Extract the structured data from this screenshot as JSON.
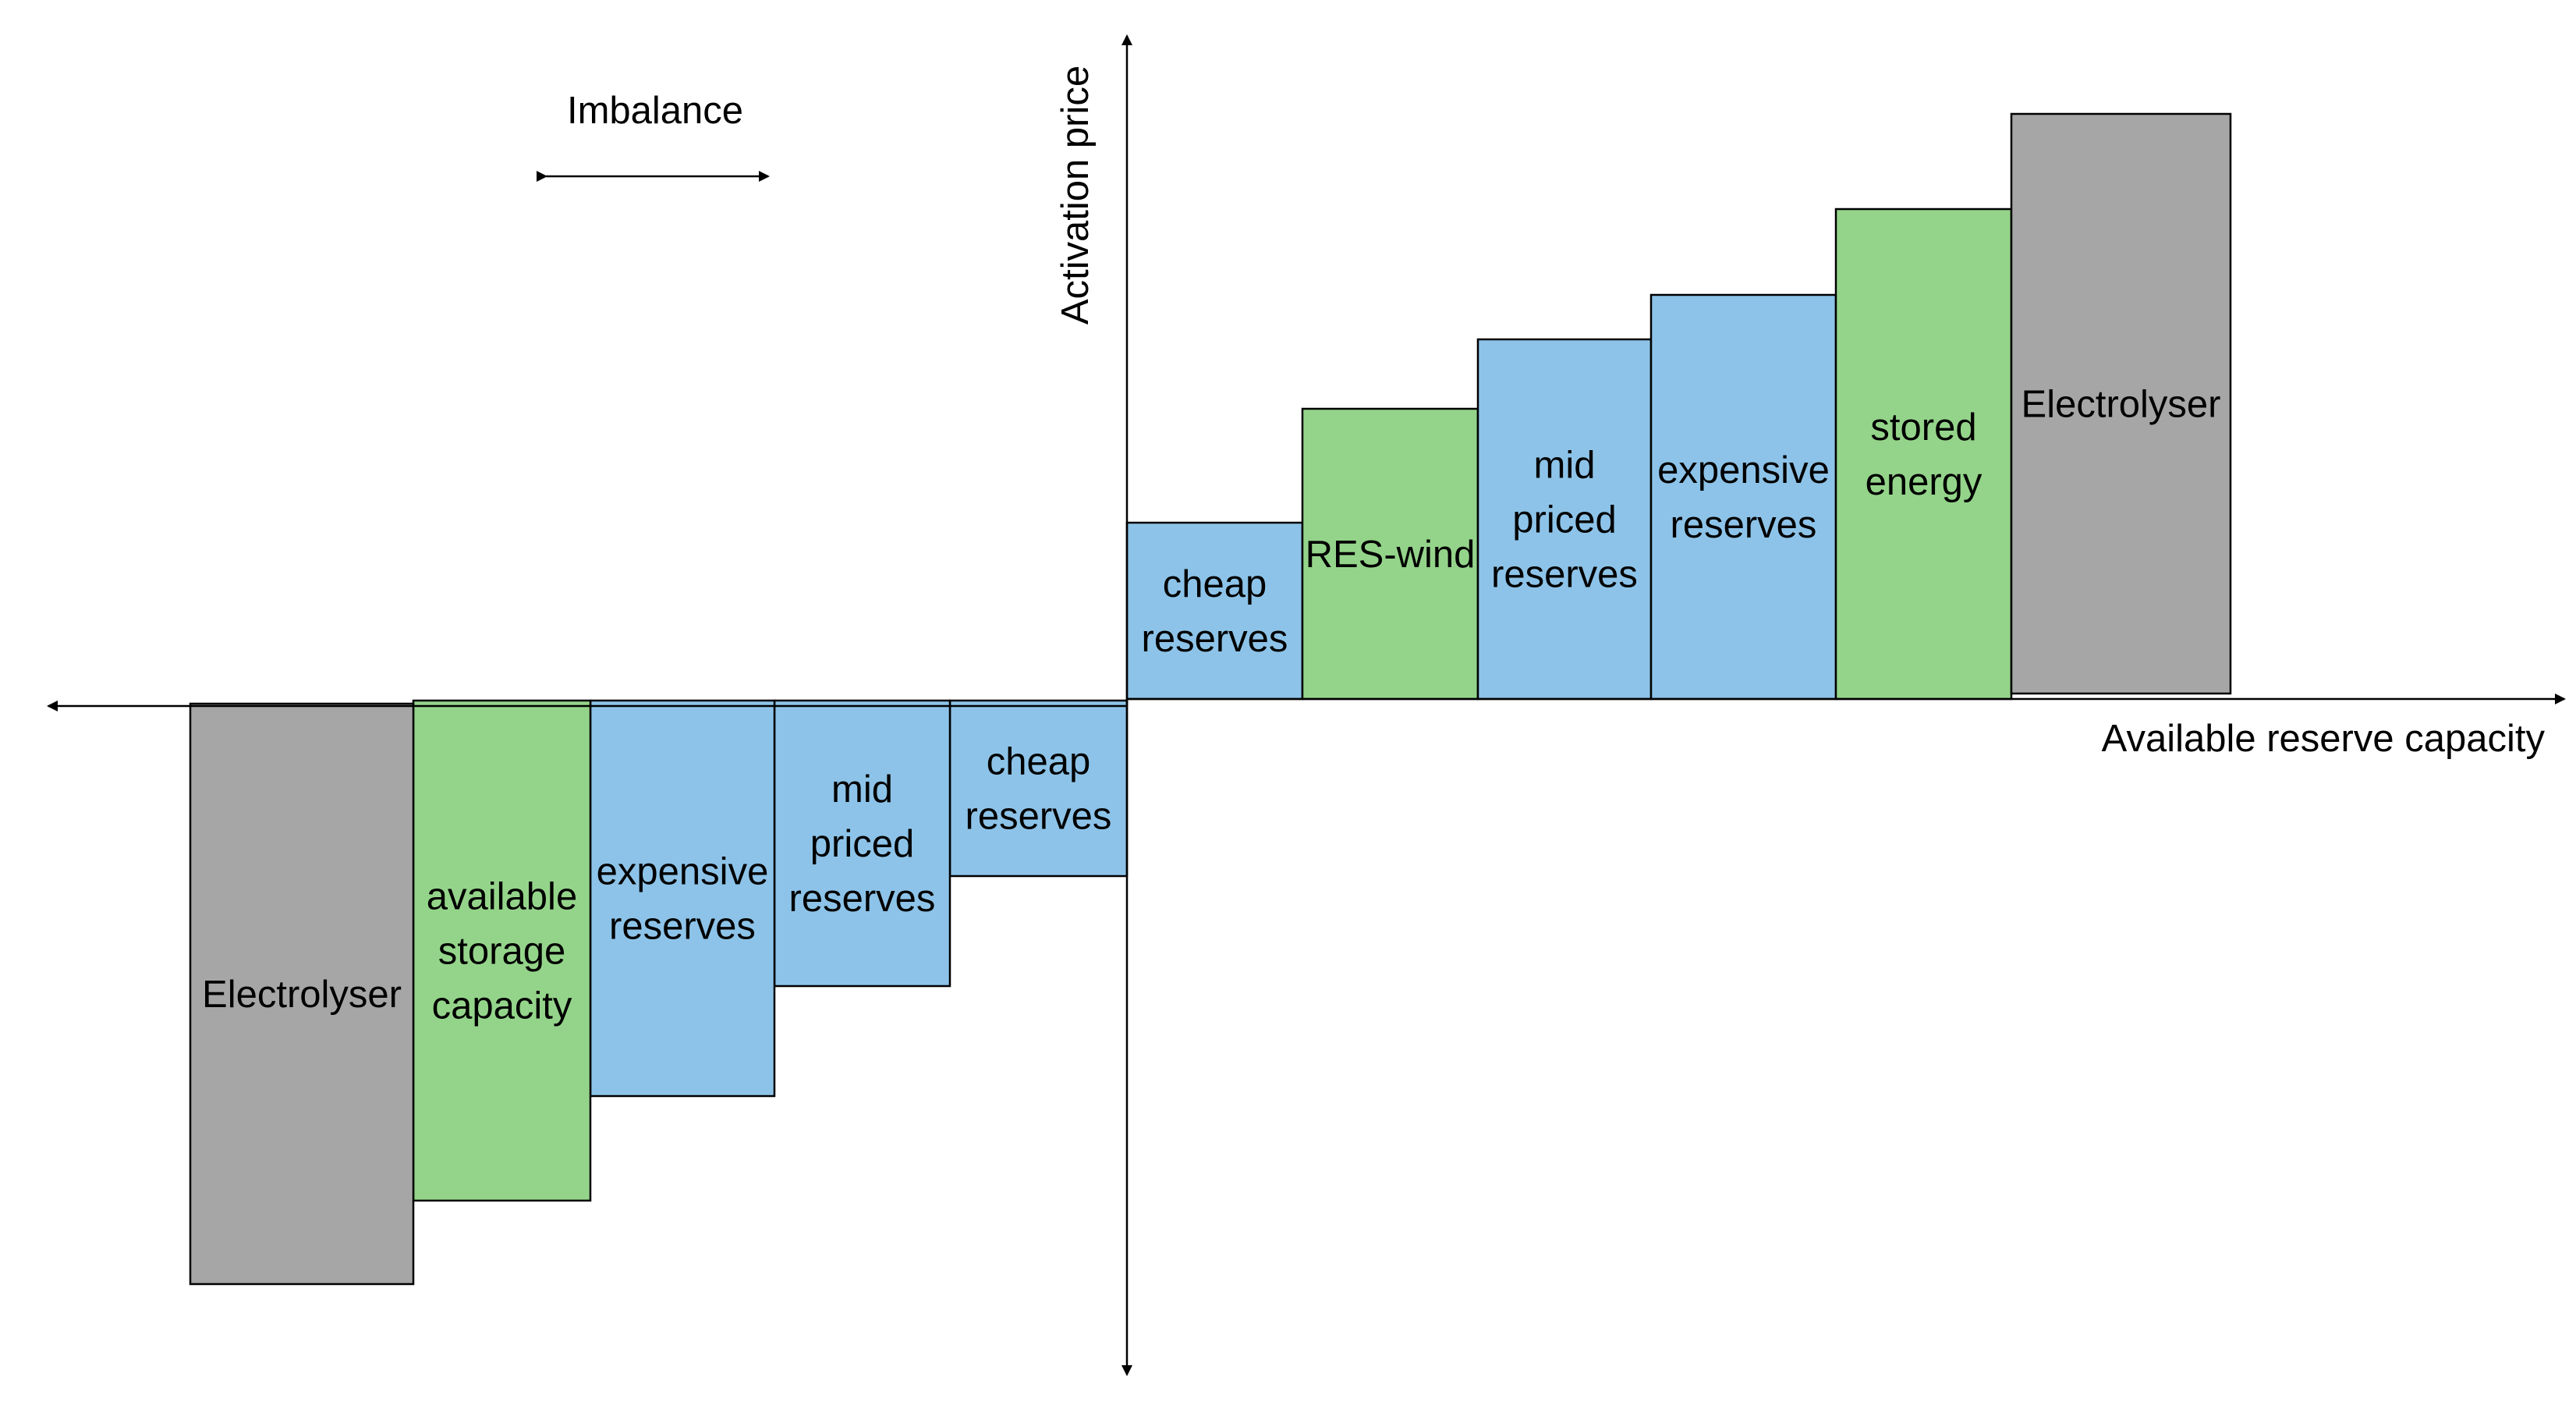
{
  "diagram": {
    "y_axis_label": "Activation price",
    "x_axis_label": "Available reserve capacity",
    "imbalance_label": "Imbalance",
    "colors": {
      "blue": "#8DC3E8",
      "green": "#94D48A",
      "gray": "#A6A6A6"
    },
    "positive_blocks": [
      {
        "name": "cheap-reserves",
        "lines": [
          "cheap",
          "reserves"
        ],
        "color": "blue"
      },
      {
        "name": "res-wind",
        "lines": [
          "RES-wind"
        ],
        "color": "green"
      },
      {
        "name": "mid-priced-reserves",
        "lines": [
          "mid",
          "priced",
          "reserves"
        ],
        "color": "blue"
      },
      {
        "name": "expensive-reserves",
        "lines": [
          "expensive",
          "reserves"
        ],
        "color": "blue"
      },
      {
        "name": "stored-energy",
        "lines": [
          "stored",
          "energy"
        ],
        "color": "green"
      },
      {
        "name": "electrolyser",
        "lines": [
          "Electrolyser"
        ],
        "color": "gray"
      }
    ],
    "negative_blocks": [
      {
        "name": "cheap-reserves",
        "lines": [
          "cheap",
          "reserves"
        ],
        "color": "blue"
      },
      {
        "name": "mid-priced-reserves",
        "lines": [
          "mid",
          "priced",
          "reserves"
        ],
        "color": "blue"
      },
      {
        "name": "expensive-reserves",
        "lines": [
          "expensive",
          "reserves"
        ],
        "color": "blue"
      },
      {
        "name": "available-storage-capacity",
        "lines": [
          "available",
          "storage",
          "capacity"
        ],
        "color": "green"
      },
      {
        "name": "electrolyser",
        "lines": [
          "Electrolyser"
        ],
        "color": "gray"
      }
    ]
  }
}
